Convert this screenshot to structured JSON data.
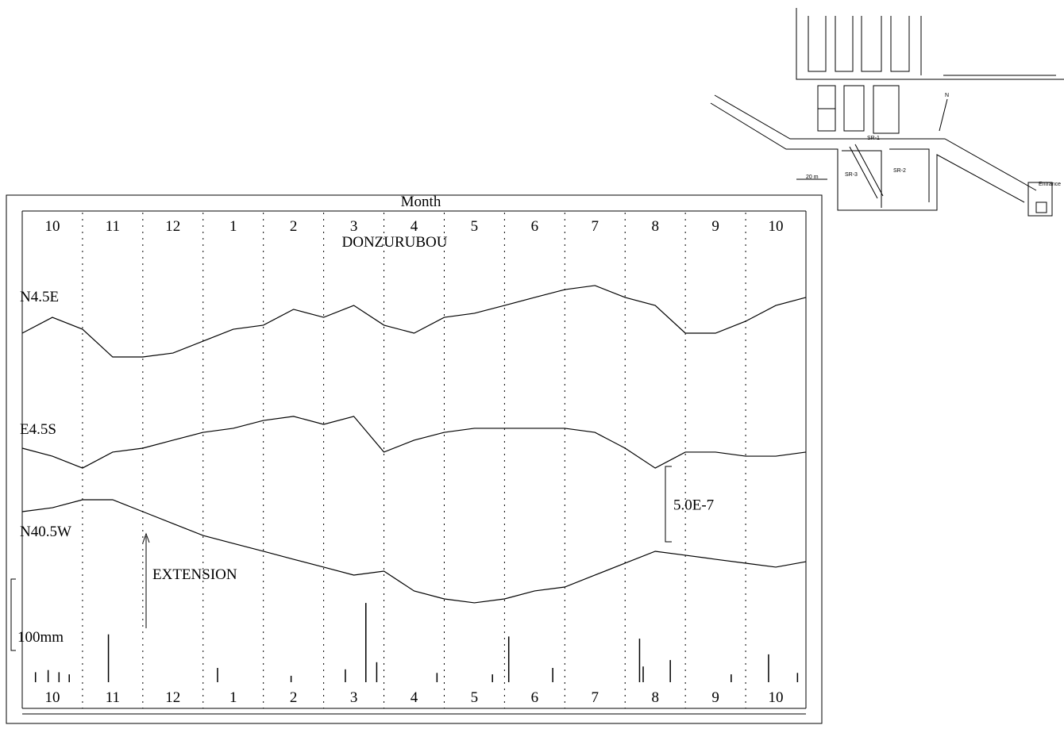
{
  "chart_data": {
    "type": "line",
    "title": "Month",
    "annotation": "DONZURUBOU",
    "arrow_label": "EXTENSION",
    "categories": [
      "10",
      "11",
      "12",
      "1",
      "2",
      "3",
      "4",
      "5",
      "6",
      "7",
      "8",
      "9",
      "10"
    ],
    "xlim": [
      0,
      13
    ],
    "x": [
      0,
      0.5,
      1,
      1.5,
      2,
      2.5,
      3,
      3.5,
      4,
      4.5,
      5,
      5.5,
      6,
      6.5,
      7,
      7.5,
      8,
      8.5,
      9,
      9.5,
      10,
      10.5,
      11,
      11.5,
      12,
      12.5,
      13
    ],
    "series": [
      {
        "name": "N4.5E",
        "color": "#000000",
        "values": [
          0,
          1.05e-07,
          2.6e-08,
          -1.58e-07,
          -1.58e-07,
          -1.32e-07,
          -5.3e-08,
          2.6e-08,
          5.3e-08,
          1.58e-07,
          1.05e-07,
          1.84e-07,
          5.3e-08,
          0,
          1.05e-07,
          1.32e-07,
          1.84e-07,
          2.37e-07,
          2.89e-07,
          3.16e-07,
          2.37e-07,
          1.84e-07,
          0,
          0,
          7.9e-08,
          1.84e-07,
          2.37e-07
        ]
      },
      {
        "name": "E4.5S",
        "color": "#000000",
        "values": [
          0,
          -5.3e-08,
          -1.32e-07,
          -2.6e-08,
          0,
          5.3e-08,
          1.05e-07,
          1.32e-07,
          1.84e-07,
          2.11e-07,
          1.58e-07,
          2.11e-07,
          -2.6e-08,
          5.3e-08,
          1.05e-07,
          1.32e-07,
          1.32e-07,
          1.32e-07,
          1.32e-07,
          1.05e-07,
          0,
          -1.32e-07,
          -2.6e-08,
          -2.6e-08,
          -5.3e-08,
          -5.3e-08,
          -2.6e-08
        ]
      },
      {
        "name": "N40.5W",
        "color": "#000000",
        "values": [
          0,
          2.6e-08,
          7.9e-08,
          7.9e-08,
          0,
          -7.9e-08,
          -1.58e-07,
          -2.11e-07,
          -2.63e-07,
          -3.16e-07,
          -3.68e-07,
          -4.21e-07,
          -3.95e-07,
          -5.26e-07,
          -5.79e-07,
          -6.05e-07,
          -5.79e-07,
          -5.26e-07,
          -5e-07,
          -4.21e-07,
          -3.42e-07,
          -2.63e-07,
          -2.89e-07,
          -3.16e-07,
          -3.42e-07,
          -3.68e-07,
          -3.32e-07
        ]
      }
    ],
    "strain_scale": {
      "value": 5e-07,
      "label": "5.0E-7"
    },
    "rain": {
      "color": "#000000",
      "x": [
        0.22,
        0.43,
        0.61,
        0.78,
        1.43,
        3.24,
        4.46,
        5.36,
        5.7,
        5.88,
        6.88,
        7.8,
        8.07,
        8.8,
        10.24,
        10.3,
        10.75,
        11.76,
        12.38,
        12.86
      ],
      "values": [
        14,
        17,
        14,
        11,
        67,
        20,
        9,
        18,
        111,
        28,
        13,
        11,
        64,
        20,
        61,
        22,
        31,
        11,
        39,
        13
      ]
    },
    "rain_scale": {
      "value": 100,
      "label": "100mm"
    }
  },
  "map": {
    "labels": [
      "SR-1",
      "SR-2",
      "SR-3",
      "20 m",
      "Entrance",
      "N"
    ]
  }
}
